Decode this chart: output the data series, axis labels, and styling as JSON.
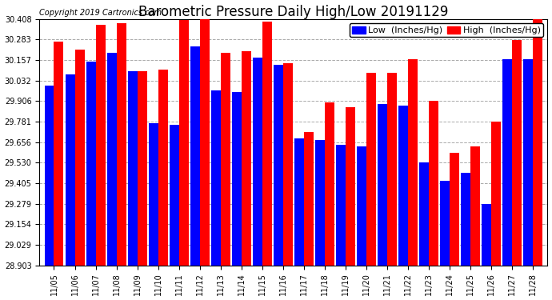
{
  "title": "Barometric Pressure Daily High/Low 20191129",
  "copyright": "Copyright 2019 Cartronics.com",
  "legend_low": "Low  (Inches/Hg)",
  "legend_high": "High  (Inches/Hg)",
  "dates": [
    "11/05",
    "11/06",
    "11/07",
    "11/08",
    "11/09",
    "11/10",
    "11/11",
    "11/12",
    "11/13",
    "11/14",
    "11/15",
    "11/16",
    "11/17",
    "11/18",
    "11/19",
    "11/20",
    "11/21",
    "11/22",
    "11/23",
    "11/24",
    "11/25",
    "11/26",
    "11/27",
    "11/28"
  ],
  "low": [
    30.0,
    30.07,
    30.15,
    30.2,
    30.09,
    29.77,
    29.76,
    30.24,
    29.97,
    29.96,
    30.17,
    30.13,
    29.68,
    29.67,
    29.64,
    29.63,
    29.89,
    29.88,
    29.53,
    29.42,
    29.47,
    29.28,
    30.16,
    30.16
  ],
  "high": [
    30.27,
    30.22,
    30.37,
    30.38,
    30.09,
    30.1,
    30.4,
    30.41,
    30.2,
    30.21,
    30.39,
    30.14,
    29.72,
    29.9,
    29.87,
    30.08,
    30.08,
    30.16,
    29.91,
    29.59,
    29.63,
    29.78,
    30.28,
    30.41
  ],
  "ylim_min": 28.903,
  "ylim_max": 30.408,
  "yticks": [
    28.903,
    29.029,
    29.154,
    29.279,
    29.405,
    29.53,
    29.656,
    29.781,
    29.906,
    30.032,
    30.157,
    30.283,
    30.408
  ],
  "bar_width": 0.46,
  "low_color": "#0000ff",
  "high_color": "#ff0000",
  "bg_color": "#ffffff",
  "grid_color": "#aaaaaa",
  "title_fontsize": 12,
  "tick_fontsize": 7,
  "copyright_fontsize": 7,
  "legend_fontsize": 8
}
